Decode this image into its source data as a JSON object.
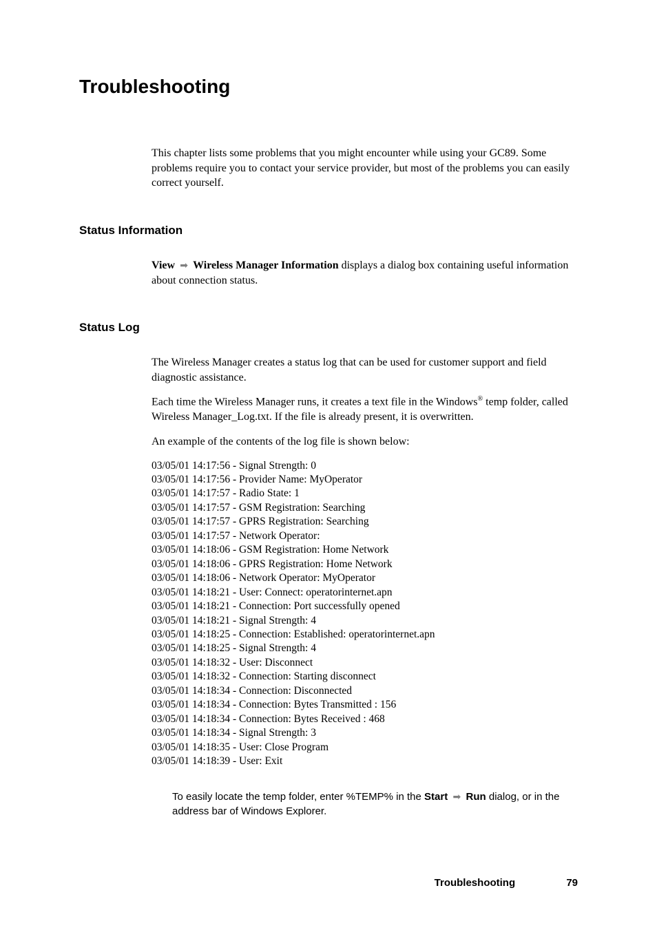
{
  "title": "Troubleshooting",
  "intro": "This chapter lists some problems that you might encounter while using your GC89. Some problems require you to contact your service provider, but most of the problems you can easily correct yourself.",
  "section1": {
    "heading": "Status Information",
    "view_label": "View",
    "wmi_label": "Wireless Manager Information",
    "after_text": " displays a dialog box containing useful information about connection status."
  },
  "section2": {
    "heading": "Status Log",
    "p1": "The Wireless Manager creates a status log that can be used for customer support and field diagnostic assistance.",
    "p2_a": "Each time the Wireless Manager runs, it creates a text file in the Windows",
    "sup": "®",
    "p2_b": " temp folder, called Wireless Manager_Log.txt. If the file is already present, it is overwritten.",
    "p3": "An example of the contents of the log file is shown below:",
    "log": [
      "03/05/01 14:17:56 - Signal Strength: 0",
      "03/05/01 14:17:56 - Provider Name: MyOperator",
      "03/05/01 14:17:57 - Radio State: 1",
      "03/05/01 14:17:57 - GSM Registration: Searching",
      "03/05/01 14:17:57 - GPRS Registration: Searching",
      "03/05/01 14:17:57 - Network Operator:",
      "03/05/01 14:18:06 - GSM Registration: Home Network",
      "03/05/01 14:18:06 - GPRS Registration: Home Network",
      "03/05/01 14:18:06 - Network Operator: MyOperator",
      "03/05/01 14:18:21 - User: Connect: operatorinternet.apn",
      "03/05/01 14:18:21 - Connection: Port successfully opened",
      "03/05/01 14:18:21 - Signal Strength: 4",
      "03/05/01 14:18:25 - Connection: Established: operatorinternet.apn",
      "03/05/01 14:18:25 - Signal Strength: 4",
      "03/05/01 14:18:32 - User: Disconnect",
      "03/05/01 14:18:32 - Connection: Starting disconnect",
      "03/05/01 14:18:34 - Connection: Disconnected",
      "03/05/01 14:18:34 - Connection: Bytes Transmitted : 156",
      "03/05/01 14:18:34 - Connection: Bytes Received : 468",
      "03/05/01 14:18:34 - Signal Strength: 3",
      "03/05/01 14:18:35 - User: Close Program",
      "03/05/01 14:18:39 - User: Exit"
    ],
    "tip_a": "To easily locate the temp folder, enter %TEMP% in the ",
    "tip_start": "Start",
    "tip_run": "Run",
    "tip_b": " dialog, or in the address bar of Windows   Explorer."
  },
  "footer": {
    "title": "Troubleshooting",
    "page": "79"
  },
  "arrow_glyph": "➡"
}
